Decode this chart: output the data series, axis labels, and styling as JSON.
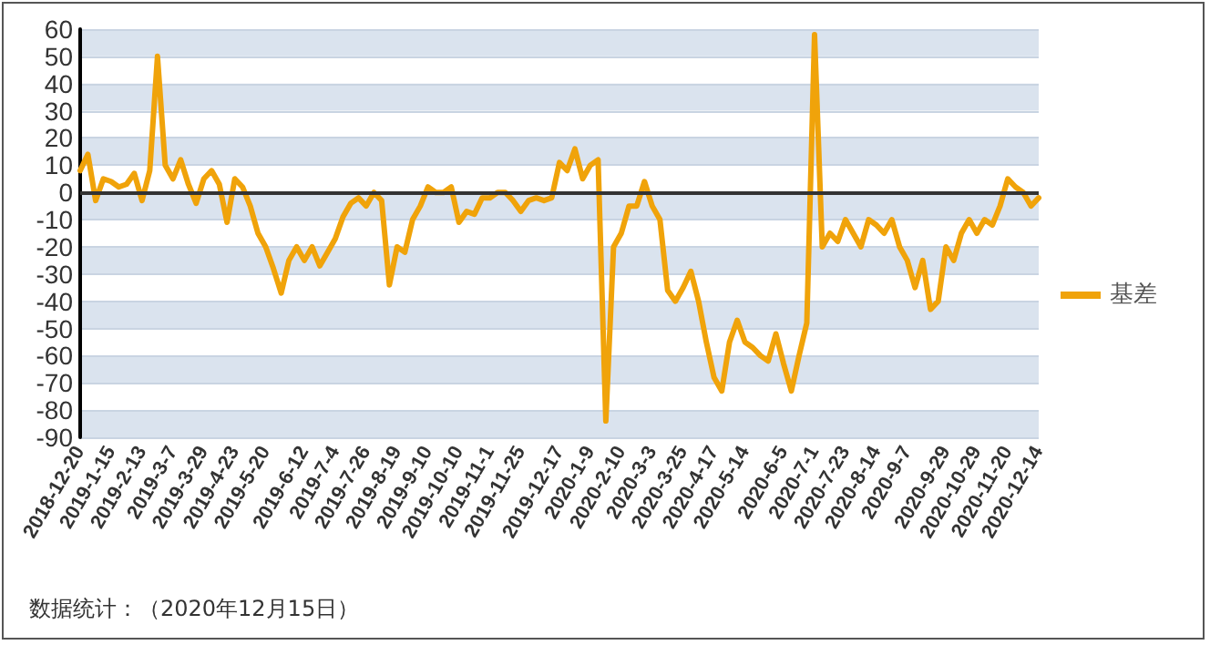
{
  "chart_data": {
    "type": "line",
    "categories": [
      "2018-12-20",
      null,
      null,
      null,
      "2019-1-15",
      null,
      null,
      null,
      "2019-2-13",
      null,
      null,
      null,
      "2019-3-7",
      null,
      null,
      null,
      "2019-3-29",
      null,
      null,
      null,
      "2019-4-23",
      null,
      null,
      null,
      "2019-5-20",
      null,
      null,
      null,
      null,
      "2019-6-12",
      null,
      null,
      null,
      "2019-7-4",
      null,
      null,
      null,
      "2019-7-26",
      null,
      null,
      null,
      "2019-8-19",
      null,
      null,
      null,
      "2019-9-10",
      null,
      null,
      null,
      "2019-10-10",
      null,
      null,
      null,
      "2019-11-1",
      null,
      null,
      null,
      "2019-11-25",
      null,
      null,
      null,
      null,
      "2019-12-17",
      null,
      null,
      null,
      "2020-1-9",
      null,
      null,
      null,
      "2020-2-10",
      null,
      null,
      null,
      "2020-3-3",
      null,
      null,
      null,
      "2020-3-25",
      null,
      null,
      null,
      "2020-4-17",
      null,
      null,
      null,
      "2020-5-14",
      null,
      null,
      null,
      null,
      "2020-6-5",
      null,
      null,
      null,
      "2020-7-1",
      null,
      null,
      null,
      "2020-7-23",
      null,
      null,
      null,
      "2020-8-14",
      null,
      null,
      null,
      "2020-9-7",
      null,
      null,
      null,
      null,
      "2020-9-29",
      null,
      null,
      null,
      "2020-10-29",
      null,
      null,
      null,
      "2020-11-20",
      null,
      null,
      null,
      "2020-12-14"
    ],
    "series": [
      {
        "name": "基差",
        "color": "#f0a30a",
        "values": [
          8,
          14,
          -3,
          5,
          4,
          2,
          3,
          7,
          -3,
          8,
          50,
          10,
          5,
          12,
          3,
          -4,
          5,
          8,
          3,
          -11,
          5,
          2,
          -5,
          -15,
          -20,
          -28,
          -37,
          -25,
          -20,
          -25,
          -20,
          -27,
          -22,
          -17,
          -9,
          -4,
          -2,
          -5,
          0,
          -3,
          -34,
          -20,
          -22,
          -10,
          -5,
          2,
          0,
          0,
          2,
          -11,
          -7,
          -8,
          -2,
          -2,
          0,
          0,
          -3,
          -7,
          -3,
          -2,
          -3,
          -2,
          11,
          8,
          16,
          5,
          10,
          12,
          -84,
          -20,
          -15,
          -5,
          -5,
          4,
          -5,
          -10,
          -36,
          -40,
          -35,
          -29,
          -40,
          -55,
          -68,
          -73,
          -55,
          -47,
          -55,
          -57,
          -60,
          -62,
          -52,
          -63,
          -73,
          -60,
          -48,
          58,
          -20,
          -15,
          -18,
          -10,
          -15,
          -20,
          -10,
          -12,
          -15,
          -10,
          -20,
          -25,
          -35,
          -25,
          -43,
          -40,
          -20,
          -25,
          -15,
          -10,
          -15,
          -10,
          -12,
          -5,
          5,
          2,
          0,
          -5,
          -2
        ]
      }
    ],
    "ylim": [
      -90,
      60
    ],
    "yticks": [
      -90,
      -80,
      -70,
      -60,
      -50,
      -40,
      -30,
      -20,
      -10,
      0,
      10,
      20,
      30,
      40,
      50,
      60
    ],
    "grid": "y",
    "legend": "right",
    "marker": "none",
    "line_style": "solid",
    "ref_lines": [
      {
        "axis": "y",
        "value": 0,
        "color": "#333333"
      }
    ],
    "annotations": [
      "数据统计：（2020年12月15日）"
    ]
  }
}
